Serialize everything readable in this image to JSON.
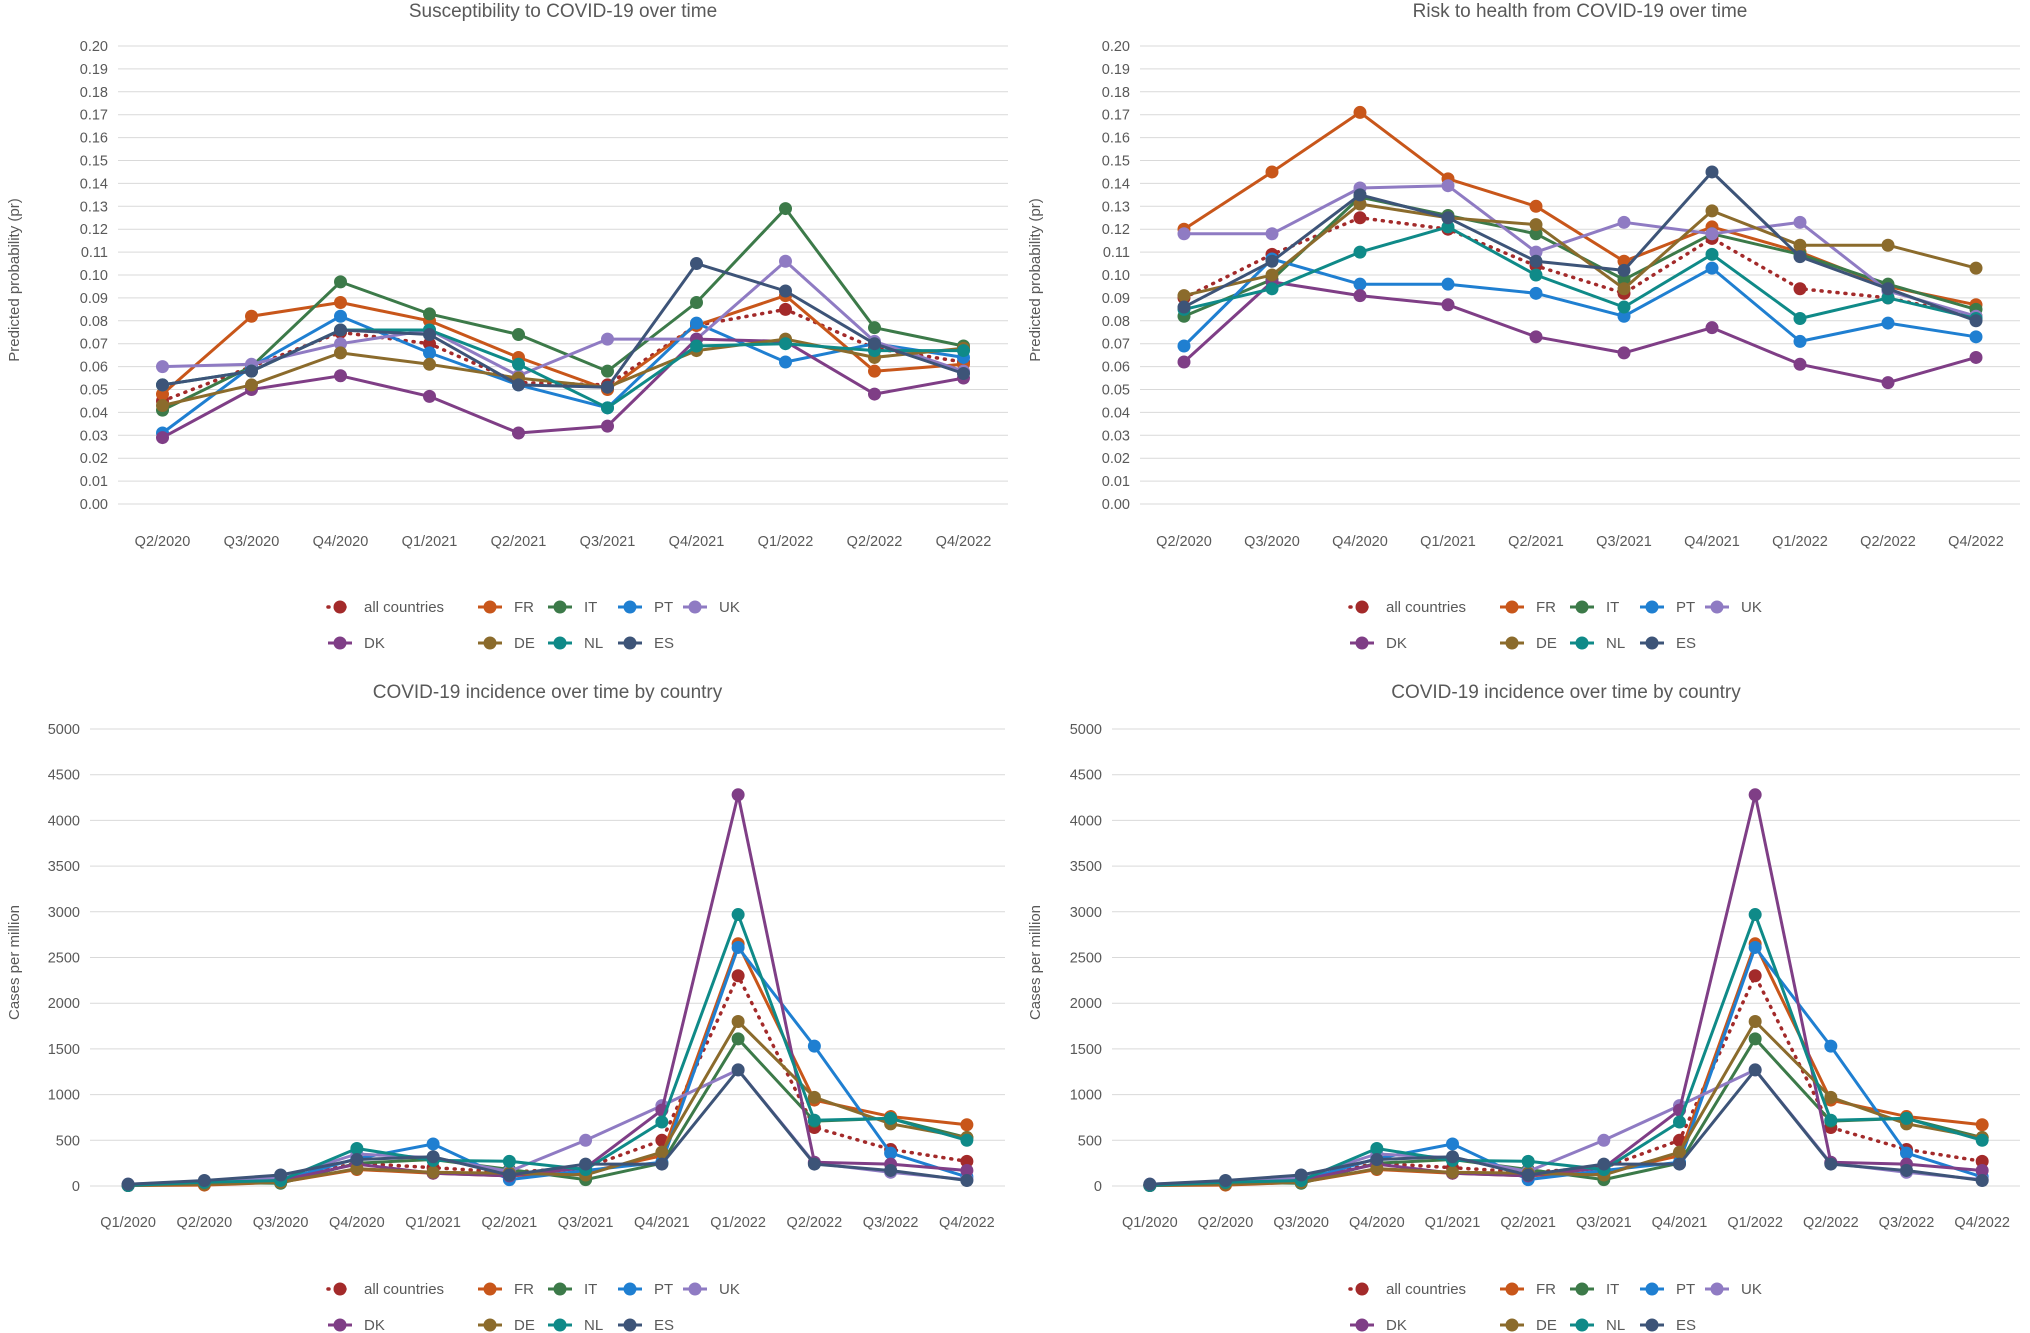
{
  "series_styles": {
    "all countries": {
      "color": "#a32a2a",
      "dotted": true
    },
    "FR": {
      "color": "#c8561a"
    },
    "IT": {
      "color": "#3c7a49"
    },
    "PT": {
      "color": "#1f7fd1"
    },
    "UK": {
      "color": "#8f7bc3"
    },
    "DK": {
      "color": "#7f3e86"
    },
    "DE": {
      "color": "#8b6b2c"
    },
    "NL": {
      "color": "#0f8a88"
    },
    "ES": {
      "color": "#3d5478"
    }
  },
  "legend_rows": [
    [
      "all countries",
      "FR",
      "IT",
      "PT",
      "UK"
    ],
    [
      "DK",
      "DE",
      "NL",
      "ES"
    ]
  ],
  "chart_data": [
    {
      "type": "line",
      "title": "Susceptibility to COVID-19 over time",
      "ylabel": "Predicted probability (pr)",
      "xlabel": "",
      "ylim": [
        0,
        0.2
      ],
      "ytick_step": 0.01,
      "ytick_decimals": 2,
      "categories": [
        "Q2/2020",
        "Q3/2020",
        "Q4/2020",
        "Q1/2021",
        "Q2/2021",
        "Q3/2021",
        "Q4/2021",
        "Q1/2022",
        "Q2/2022",
        "Q4/2022"
      ],
      "series": [
        {
          "name": "all countries",
          "values": [
            0.045,
            0.06,
            0.075,
            0.07,
            0.053,
            0.052,
            0.078,
            0.085,
            0.068,
            0.062
          ]
        },
        {
          "name": "FR",
          "values": [
            0.048,
            0.082,
            0.088,
            0.08,
            0.064,
            0.05,
            0.078,
            0.091,
            0.058,
            0.061
          ]
        },
        {
          "name": "IT",
          "values": [
            0.041,
            0.06,
            0.097,
            0.083,
            0.074,
            0.058,
            0.088,
            0.129,
            0.077,
            0.069
          ]
        },
        {
          "name": "PT",
          "values": [
            0.031,
            0.06,
            0.082,
            0.066,
            0.052,
            0.042,
            0.079,
            0.062,
            0.07,
            0.064
          ]
        },
        {
          "name": "UK",
          "values": [
            0.06,
            0.061,
            0.07,
            0.076,
            0.056,
            0.072,
            0.072,
            0.106,
            0.071,
            0.058
          ]
        },
        {
          "name": "DK",
          "values": [
            0.029,
            0.05,
            0.056,
            0.047,
            0.031,
            0.034,
            0.072,
            0.071,
            0.048,
            0.055
          ]
        },
        {
          "name": "DE",
          "values": [
            0.043,
            0.052,
            0.066,
            0.061,
            0.055,
            0.051,
            0.067,
            0.072,
            0.064,
            0.068
          ]
        },
        {
          "name": "NL",
          "values": [
            0.052,
            0.058,
            0.076,
            0.076,
            0.061,
            0.042,
            0.069,
            0.07,
            0.067,
            0.067
          ]
        },
        {
          "name": "ES",
          "values": [
            0.052,
            0.058,
            0.076,
            0.074,
            0.052,
            0.051,
            0.105,
            0.093,
            0.07,
            0.057
          ]
        }
      ]
    },
    {
      "type": "line",
      "title": "Risk to health from COVID-19 over time",
      "ylabel": "Predicted probability (pr)",
      "xlabel": "",
      "ylim": [
        0,
        0.2
      ],
      "ytick_step": 0.01,
      "ytick_decimals": 2,
      "categories": [
        "Q2/2020",
        "Q3/2020",
        "Q4/2020",
        "Q1/2021",
        "Q2/2021",
        "Q3/2021",
        "Q4/2021",
        "Q1/2022",
        "Q2/2022",
        "Q4/2022"
      ],
      "series": [
        {
          "name": "all countries",
          "values": [
            0.09,
            0.109,
            0.125,
            0.12,
            0.104,
            0.092,
            0.116,
            0.094,
            0.09,
            0.082
          ]
        },
        {
          "name": "FR",
          "values": [
            0.12,
            0.145,
            0.171,
            0.142,
            0.13,
            0.106,
            0.121,
            0.11,
            0.095,
            0.087
          ]
        },
        {
          "name": "IT",
          "values": [
            0.082,
            0.098,
            0.134,
            0.126,
            0.118,
            0.098,
            0.118,
            0.109,
            0.096,
            0.085
          ]
        },
        {
          "name": "PT",
          "values": [
            0.069,
            0.107,
            0.096,
            0.096,
            0.092,
            0.082,
            0.103,
            0.071,
            0.079,
            0.073
          ]
        },
        {
          "name": "UK",
          "values": [
            0.118,
            0.118,
            0.138,
            0.139,
            0.11,
            0.123,
            0.118,
            0.123,
            0.093,
            0.082
          ]
        },
        {
          "name": "DK",
          "values": [
            0.062,
            0.097,
            0.091,
            0.087,
            0.073,
            0.066,
            0.077,
            0.061,
            0.053,
            0.064
          ]
        },
        {
          "name": "DE",
          "values": [
            0.091,
            0.1,
            0.131,
            0.125,
            0.122,
            0.094,
            0.128,
            0.113,
            0.113,
            0.103
          ]
        },
        {
          "name": "NL",
          "values": [
            0.085,
            0.094,
            0.11,
            0.121,
            0.1,
            0.086,
            0.109,
            0.081,
            0.09,
            0.081
          ]
        },
        {
          "name": "ES",
          "values": [
            0.086,
            0.106,
            0.135,
            0.125,
            0.106,
            0.102,
            0.145,
            0.108,
            0.094,
            0.08
          ]
        }
      ]
    },
    {
      "type": "line",
      "title": "COVID-19 incidence over time by country",
      "ylabel": "Cases per million",
      "xlabel": "",
      "ylim": [
        0,
        5000
      ],
      "ytick_step": 500,
      "ytick_decimals": 0,
      "categories": [
        "Q1/2020",
        "Q2/2020",
        "Q3/2020",
        "Q4/2020",
        "Q1/2021",
        "Q2/2021",
        "Q3/2021",
        "Q4/2021",
        "Q1/2022",
        "Q2/2022",
        "Q3/2022",
        "Q4/2022"
      ],
      "series": [
        {
          "name": "all countries",
          "values": [
            10,
            30,
            80,
            250,
            200,
            150,
            200,
            500,
            2300,
            640,
            400,
            270
          ]
        },
        {
          "name": "FR",
          "values": [
            5,
            10,
            40,
            180,
            140,
            110,
            150,
            330,
            2650,
            940,
            760,
            670
          ]
        },
        {
          "name": "IT",
          "values": [
            10,
            40,
            30,
            250,
            290,
            180,
            70,
            250,
            1610,
            710,
            740,
            530
          ]
        },
        {
          "name": "PT",
          "values": [
            5,
            40,
            60,
            300,
            460,
            70,
            170,
            260,
            2610,
            1530,
            360,
            100
          ]
        },
        {
          "name": "UK",
          "values": [
            20,
            50,
            90,
            350,
            310,
            160,
            500,
            880,
            1270,
            250,
            150,
            70
          ]
        },
        {
          "name": "DK",
          "values": [
            5,
            30,
            60,
            240,
            140,
            110,
            200,
            830,
            4280,
            260,
            240,
            170
          ]
        },
        {
          "name": "DE",
          "values": [
            5,
            20,
            40,
            190,
            150,
            140,
            120,
            370,
            1800,
            970,
            680,
            530
          ]
        },
        {
          "name": "NL",
          "values": [
            5,
            40,
            60,
            410,
            280,
            270,
            180,
            700,
            2970,
            720,
            740,
            500
          ]
        },
        {
          "name": "ES",
          "values": [
            20,
            60,
            120,
            290,
            320,
            120,
            240,
            240,
            1270,
            240,
            170,
            60
          ]
        }
      ]
    },
    {
      "type": "line",
      "title": "COVID-19 incidence over time by country",
      "ylabel": "Cases per million",
      "xlabel": "",
      "ylim": [
        0,
        5000
      ],
      "ytick_step": 500,
      "ytick_decimals": 0,
      "categories": [
        "Q1/2020",
        "Q2/2020",
        "Q3/2020",
        "Q4/2020",
        "Q1/2021",
        "Q2/2021",
        "Q3/2021",
        "Q4/2021",
        "Q1/2022",
        "Q2/2022",
        "Q3/2022",
        "Q4/2022"
      ],
      "series": [
        {
          "name": "all countries",
          "values": [
            10,
            30,
            80,
            250,
            200,
            150,
            200,
            500,
            2300,
            640,
            400,
            270
          ]
        },
        {
          "name": "FR",
          "values": [
            5,
            10,
            40,
            180,
            140,
            110,
            150,
            330,
            2650,
            940,
            760,
            670
          ]
        },
        {
          "name": "IT",
          "values": [
            10,
            40,
            30,
            250,
            290,
            180,
            70,
            250,
            1610,
            710,
            740,
            530
          ]
        },
        {
          "name": "PT",
          "values": [
            5,
            40,
            60,
            300,
            460,
            70,
            170,
            260,
            2610,
            1530,
            360,
            100
          ]
        },
        {
          "name": "UK",
          "values": [
            20,
            50,
            90,
            350,
            310,
            160,
            500,
            880,
            1270,
            250,
            150,
            70
          ]
        },
        {
          "name": "DK",
          "values": [
            5,
            30,
            60,
            240,
            140,
            110,
            200,
            830,
            4280,
            260,
            240,
            170
          ]
        },
        {
          "name": "DE",
          "values": [
            5,
            20,
            40,
            190,
            150,
            140,
            120,
            370,
            1800,
            970,
            680,
            530
          ]
        },
        {
          "name": "NL",
          "values": [
            5,
            40,
            60,
            410,
            280,
            270,
            180,
            700,
            2970,
            720,
            740,
            500
          ]
        },
        {
          "name": "ES",
          "values": [
            20,
            60,
            120,
            290,
            320,
            120,
            240,
            240,
            1270,
            240,
            170,
            60
          ]
        }
      ]
    }
  ]
}
